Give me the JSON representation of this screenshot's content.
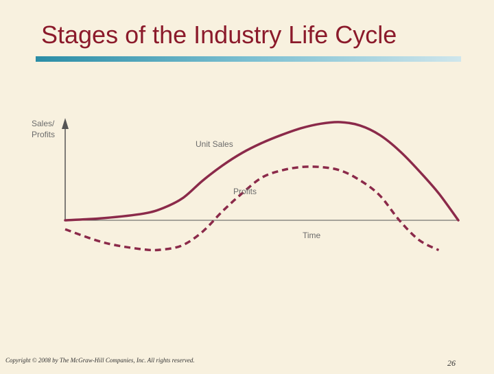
{
  "slide": {
    "title": "Stages of the Industry Life Cycle",
    "copyright": "Copyright © 2008 by The McGraw-Hill Companies, Inc. All rights reserved.",
    "page_number": "26"
  },
  "colors": {
    "title": "#8b1a2b",
    "curve": "#8b2a4a",
    "axis": "#555555",
    "rule_start": "#2b8da6",
    "rule_end": "#cfe6ec",
    "background": "#f8f1df"
  },
  "chart_data": {
    "type": "line",
    "title": "",
    "ylabel_line1": "Sales/",
    "ylabel_line2": "Profits",
    "xlabel": "Time",
    "xlim": [
      0,
      100
    ],
    "ylim": [
      -20,
      60
    ],
    "grid": false,
    "series": [
      {
        "name": "Unit Sales",
        "style": "solid",
        "x": [
          0,
          10,
          20,
          25,
          30,
          35,
          40,
          45,
          50,
          55,
          60,
          65,
          70,
          75,
          80,
          85,
          90,
          95,
          100
        ],
        "values": [
          0,
          1,
          3,
          5.5,
          10,
          17.7,
          24.4,
          30,
          34.4,
          38,
          41,
          43,
          43.7,
          42.2,
          38,
          31,
          22,
          12,
          0
        ]
      },
      {
        "name": "Profits",
        "style": "dashed",
        "x": [
          0,
          10,
          20,
          25,
          30,
          35,
          40,
          45,
          50,
          55,
          60,
          65,
          70,
          75,
          80,
          85,
          90,
          95
        ],
        "values": [
          -4,
          -10,
          -13,
          -13,
          -11,
          -5,
          4,
          12,
          19,
          22.2,
          23.7,
          23.7,
          22.2,
          17.8,
          11.1,
          0,
          -8.8,
          -13.3
        ]
      }
    ]
  }
}
